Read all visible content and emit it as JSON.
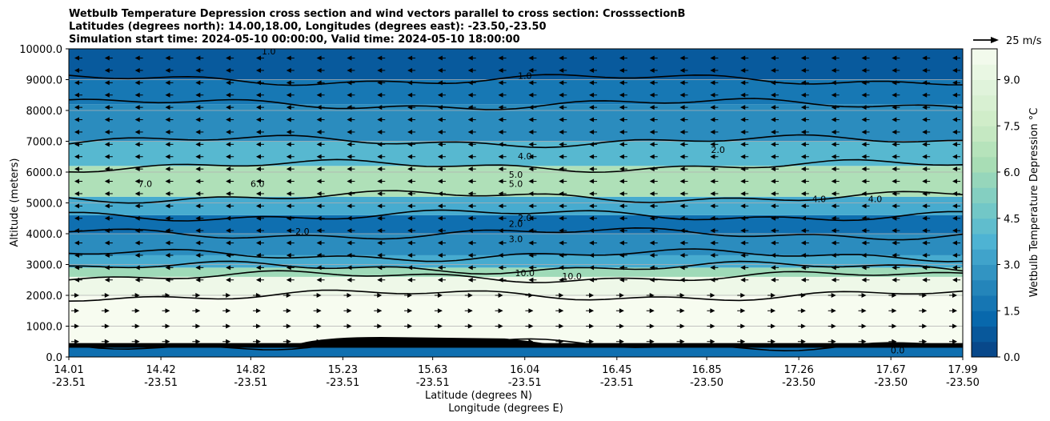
{
  "chart_data": {
    "type": "heatmap",
    "title_lines": [
      "Wetbulb Temperature Depression cross section and wind vectors parallel to cross section: CrosssectionB",
      "Latitudes (degrees north): 14.00,18.00, Longitudes (degrees east): -23.50,-23.50",
      "Simulation start time: 2024-05-10 00:00:00, Valid time: 2024-05-10 18:00:00"
    ],
    "xlabel_line1": "Latitude (degrees N)",
    "xlabel_line2": "Longitude (degrees E)",
    "ylabel": "Altitude (meters)",
    "colorbar_label": "Wetbulb Temperature Depression °C",
    "wind_key_label": "25 m/s",
    "x_ticks": [
      {
        "lat": "14.01",
        "lon": "-23.51"
      },
      {
        "lat": "14.42",
        "lon": "-23.51"
      },
      {
        "lat": "14.82",
        "lon": "-23.51"
      },
      {
        "lat": "15.23",
        "lon": "-23.51"
      },
      {
        "lat": "15.63",
        "lon": "-23.51"
      },
      {
        "lat": "16.04",
        "lon": "-23.51"
      },
      {
        "lat": "16.45",
        "lon": "-23.51"
      },
      {
        "lat": "16.85",
        "lon": "-23.50"
      },
      {
        "lat": "17.26",
        "lon": "-23.50"
      },
      {
        "lat": "17.67",
        "lon": "-23.50"
      },
      {
        "lat": "17.99",
        "lon": "-23.50"
      }
    ],
    "x_range": [
      14.01,
      17.99
    ],
    "y_ticks": [
      "0.0",
      "1000.0",
      "2000.0",
      "3000.0",
      "4000.0",
      "5000.0",
      "6000.0",
      "7000.0",
      "8000.0",
      "9000.0",
      "10000.0"
    ],
    "y_range": [
      0,
      10000
    ],
    "grid": "horizontal",
    "colorbar_ticks": [
      "0.0",
      "1.5",
      "3.0",
      "4.5",
      "6.0",
      "7.5",
      "9.0"
    ],
    "colorbar_range": [
      0,
      10
    ],
    "colorbar_colors": [
      "#084081",
      "#0868ac",
      "#2b8cbe",
      "#4eb3d3",
      "#7bccc4",
      "#a8ddb5",
      "#ccebc5",
      "#e0f3db",
      "#f7fcf0"
    ],
    "layers": [
      {
        "z_bottom": 0,
        "z_top": 400,
        "value": 1.5
      },
      {
        "z_bottom": 400,
        "z_top": 2000,
        "value": 10.0
      },
      {
        "z_bottom": 2000,
        "z_top": 2600,
        "value": 9.5
      },
      {
        "z_bottom": 2600,
        "z_top": 2900,
        "value": 6.0
      },
      {
        "z_bottom": 2900,
        "z_top": 3300,
        "value": 3.5
      },
      {
        "z_bottom": 3300,
        "z_top": 4000,
        "value": 2.5
      },
      {
        "z_bottom": 4000,
        "z_top": 4600,
        "value": 1.5
      },
      {
        "z_bottom": 4600,
        "z_top": 5200,
        "value": 3.5
      },
      {
        "z_bottom": 5200,
        "z_top": 6200,
        "value": 6.5
      },
      {
        "z_bottom": 6200,
        "z_top": 7000,
        "value": 4.0
      },
      {
        "z_bottom": 7000,
        "z_top": 8200,
        "value": 2.5
      },
      {
        "z_bottom": 8200,
        "z_top": 9000,
        "value": 1.8
      },
      {
        "z_bottom": 9000,
        "z_top": 10000,
        "value": 0.8
      }
    ],
    "contour_labels": [
      {
        "text": "1.0",
        "lat": 16.04,
        "z": 9100
      },
      {
        "text": "1.0",
        "lat": 14.9,
        "z": 9900
      },
      {
        "text": "4.0",
        "lat": 16.04,
        "z": 6500
      },
      {
        "text": "2.0",
        "lat": 16.9,
        "z": 6700
      },
      {
        "text": "5.0",
        "lat": 16.0,
        "z": 5900
      },
      {
        "text": "5.0",
        "lat": 16.0,
        "z": 5600
      },
      {
        "text": "7.0",
        "lat": 14.35,
        "z": 5600
      },
      {
        "text": "6.0",
        "lat": 14.85,
        "z": 5600
      },
      {
        "text": "4.0",
        "lat": 17.35,
        "z": 5100
      },
      {
        "text": "4.0",
        "lat": 17.6,
        "z": 5100
      },
      {
        "text": "2.0",
        "lat": 16.04,
        "z": 4500
      },
      {
        "text": "2.0",
        "lat": 16.0,
        "z": 4300
      },
      {
        "text": "2.0",
        "lat": 15.05,
        "z": 4050
      },
      {
        "text": "3.0",
        "lat": 16.0,
        "z": 3800
      },
      {
        "text": "10.0",
        "lat": 16.04,
        "z": 2700
      },
      {
        "text": "10.0",
        "lat": 16.25,
        "z": 2600
      },
      {
        "text": "0.0",
        "lat": 17.7,
        "z": 200
      }
    ],
    "wind_rows": [
      {
        "z": 9700,
        "dir": "left"
      },
      {
        "z": 9300,
        "dir": "left"
      },
      {
        "z": 8900,
        "dir": "left"
      },
      {
        "z": 8500,
        "dir": "left"
      },
      {
        "z": 8100,
        "dir": "left"
      },
      {
        "z": 7700,
        "dir": "left"
      },
      {
        "z": 7300,
        "dir": "left"
      },
      {
        "z": 6900,
        "dir": "left"
      },
      {
        "z": 6500,
        "dir": "left"
      },
      {
        "z": 6100,
        "dir": "left"
      },
      {
        "z": 5700,
        "dir": "left"
      },
      {
        "z": 5300,
        "dir": "left"
      },
      {
        "z": 4900,
        "dir": "left"
      },
      {
        "z": 4500,
        "dir": "left"
      },
      {
        "z": 4100,
        "dir": "left"
      },
      {
        "z": 3700,
        "dir": "left"
      },
      {
        "z": 3300,
        "dir": "left"
      },
      {
        "z": 2900,
        "dir": "left"
      },
      {
        "z": 2500,
        "dir": "left"
      },
      {
        "z": 2000,
        "dir": "right"
      },
      {
        "z": 1500,
        "dir": "right"
      },
      {
        "z": 1000,
        "dir": "right"
      },
      {
        "z": 500,
        "dir": "right"
      }
    ]
  }
}
